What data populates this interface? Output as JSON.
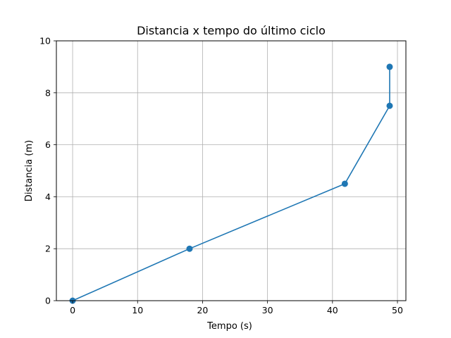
{
  "chart_data": {
    "type": "line",
    "title": "Distancia x tempo do último ciclo",
    "xlabel": "Tempo (s)",
    "ylabel": "Distancia (m)",
    "xlim": [
      -2.5,
      51.3
    ],
    "ylim": [
      0,
      10
    ],
    "x_ticks": [
      0,
      10,
      20,
      30,
      40,
      50
    ],
    "y_ticks": [
      0,
      2,
      4,
      6,
      8,
      10
    ],
    "grid": true,
    "series": [
      {
        "color": "#1f77b4",
        "marker": "circle",
        "x": [
          0,
          18,
          41.9,
          48.8,
          48.8
        ],
        "y": [
          0,
          2,
          4.5,
          7.5,
          9
        ]
      }
    ]
  }
}
